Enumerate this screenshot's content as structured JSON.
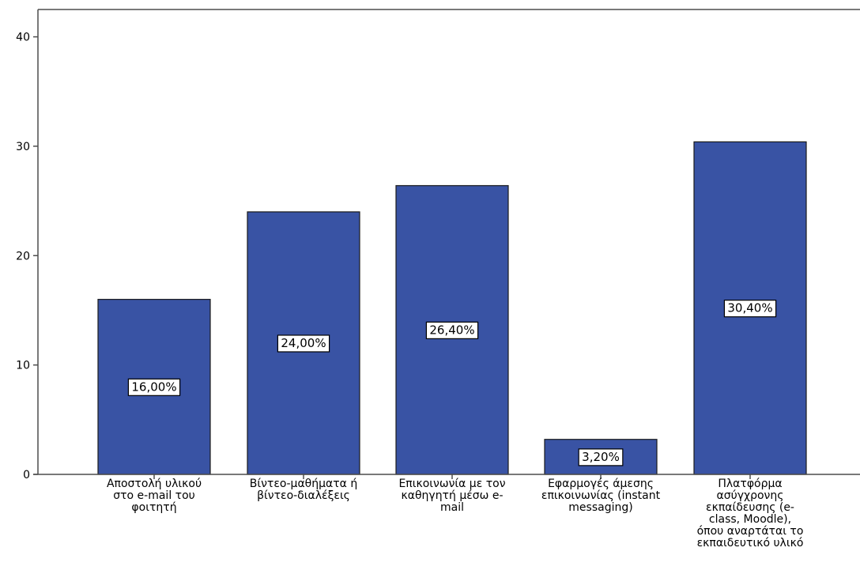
{
  "chart_data": {
    "type": "bar",
    "categories": [
      [
        "Αποστολή υλικού",
        "στο e-mail του",
        "φοιτητή"
      ],
      [
        "Βίντεο-μαθήματα ή",
        "βίντεο-διαλέξεις"
      ],
      [
        "Επικοινωνία με τον",
        "καθηγητή μέσω e-",
        "mail"
      ],
      [
        "Εφαρμογές άμεσης",
        "επικοινωνίας (instant",
        "messaging)"
      ],
      [
        "Πλατφόρμα",
        "ασύγχρονης",
        "εκπαίδευσης (e-",
        "class, Moodle),",
        "όπου αναρτάται το",
        "εκπαιδευτικό υλικό"
      ]
    ],
    "values": [
      16.0,
      24.0,
      26.4,
      3.2,
      30.4
    ],
    "value_labels": [
      "16,00%",
      "24,00%",
      "26,40%",
      "3,20%",
      "30,40%"
    ],
    "y_ticks": [
      0,
      10,
      20,
      30,
      40
    ],
    "y_tick_labels": [
      "0",
      "10",
      "20",
      "30",
      "40"
    ],
    "ylim": [
      0,
      42.5
    ],
    "title": "",
    "xlabel": "",
    "ylabel": "",
    "grid": false,
    "legend": false,
    "colors": {
      "bar_fill": "#3953a4",
      "bar_stroke": "#1a1a1a",
      "axis": "#4d4d4d",
      "label_box_fill": "#ffffff",
      "label_box_stroke": "#000000"
    }
  }
}
